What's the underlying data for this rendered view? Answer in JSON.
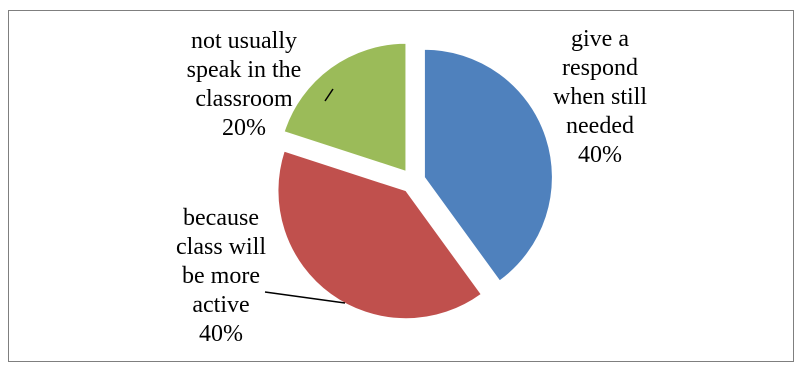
{
  "chart_data": {
    "type": "pie",
    "title": "",
    "start_angle_deg": 0,
    "direction": "clockwise",
    "exploded": true,
    "legend": "none",
    "slices": [
      {
        "label_lines": [
          "give a",
          "respond",
          "when still",
          "needed"
        ],
        "value": 40,
        "value_label": "40%",
        "color": "#4f81bd"
      },
      {
        "label_lines": [
          "because",
          "class will",
          "be more",
          "active"
        ],
        "value": 40,
        "value_label": "40%",
        "color": "#c0504d"
      },
      {
        "label_lines": [
          "not usually",
          "speak in the",
          "classroom"
        ],
        "value": 20,
        "value_label": "20%",
        "color": "#9bbb59"
      }
    ]
  }
}
